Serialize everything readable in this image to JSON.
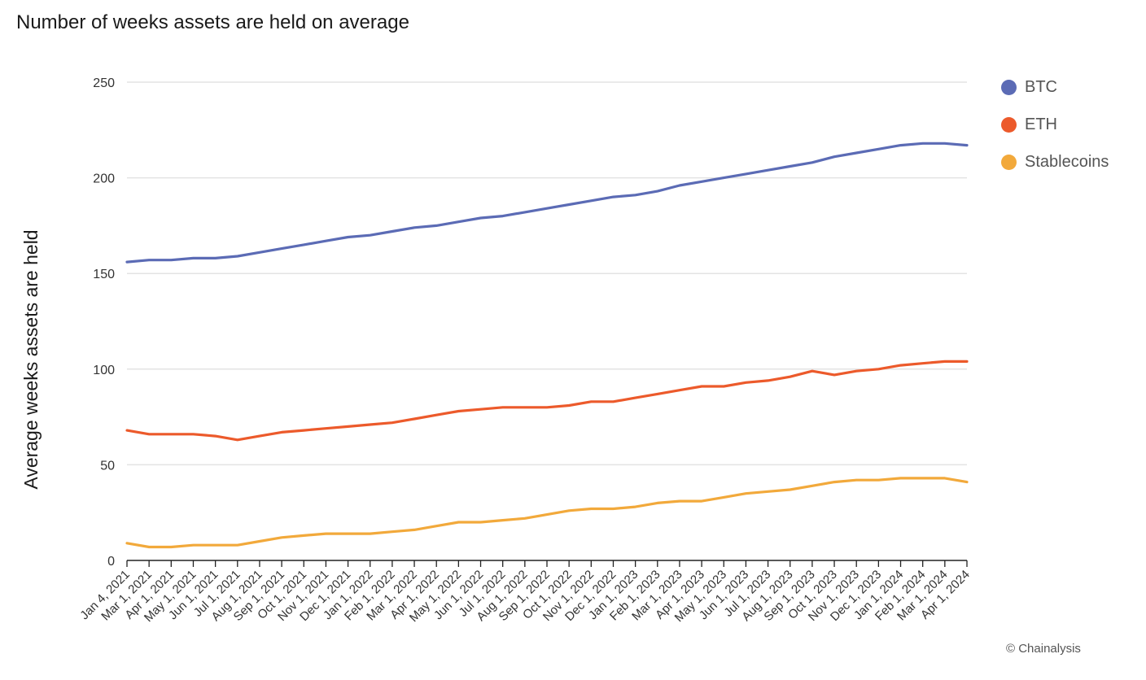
{
  "chart_data": {
    "type": "line",
    "title": "Number of weeks assets are held on average",
    "ylabel": "Average weeks assets are held",
    "xlabel": "",
    "ylim": [
      0,
      250
    ],
    "yticks": [
      0,
      50,
      100,
      150,
      200,
      250
    ],
    "grid": true,
    "legend_position": "right",
    "x": [
      "Jan 4, 2021",
      "Mar 1, 2021",
      "Apr 1, 2021",
      "May 1, 2021",
      "Jun 1, 2021",
      "Jul 1, 2021",
      "Aug 1, 2021",
      "Sep 1, 2021",
      "Oct 1, 2021",
      "Nov 1, 2021",
      "Dec 1, 2021",
      "Jan 1, 2022",
      "Feb 1, 2022",
      "Mar 1, 2022",
      "Apr 1, 2022",
      "May 1, 2022",
      "Jun 1, 2022",
      "Jul 1, 2022",
      "Aug 1, 2022",
      "Sep 1, 2022",
      "Oct 1, 2022",
      "Nov 1, 2022",
      "Dec 1, 2022",
      "Jan 1, 2023",
      "Feb 1, 2023",
      "Mar 1, 2023",
      "Apr 1, 2023",
      "May 1, 2023",
      "Jun 1, 2023",
      "Jul 1, 2023",
      "Aug 1, 2023",
      "Sep 1, 2023",
      "Oct 1, 2023",
      "Nov 1, 2023",
      "Dec 1, 2023",
      "Jan 1, 2024",
      "Feb 1, 2024",
      "Mar 1, 2024",
      "Apr 1, 2024"
    ],
    "series": [
      {
        "name": "BTC",
        "color": "#5b6bb5",
        "values": [
          156,
          157,
          157,
          158,
          158,
          159,
          161,
          163,
          165,
          167,
          169,
          170,
          172,
          174,
          175,
          177,
          179,
          180,
          182,
          184,
          186,
          188,
          190,
          191,
          193,
          196,
          198,
          200,
          202,
          204,
          206,
          208,
          211,
          213,
          215,
          217,
          218,
          218,
          217
        ]
      },
      {
        "name": "ETH",
        "color": "#ec5a2b",
        "values": [
          68,
          66,
          66,
          66,
          65,
          63,
          65,
          67,
          68,
          69,
          70,
          71,
          72,
          74,
          76,
          78,
          79,
          80,
          80,
          80,
          81,
          83,
          83,
          85,
          87,
          89,
          91,
          91,
          93,
          94,
          96,
          99,
          97,
          99,
          100,
          102,
          103,
          104,
          104
        ]
      },
      {
        "name": "Stablecoins",
        "color": "#f2a93b",
        "values": [
          9,
          7,
          7,
          8,
          8,
          8,
          10,
          12,
          13,
          14,
          14,
          14,
          15,
          16,
          18,
          20,
          20,
          21,
          22,
          24,
          26,
          27,
          27,
          28,
          30,
          31,
          31,
          33,
          35,
          36,
          37,
          39,
          41,
          42,
          42,
          43,
          43,
          43,
          41
        ]
      }
    ]
  },
  "credit": "© Chainalysis"
}
